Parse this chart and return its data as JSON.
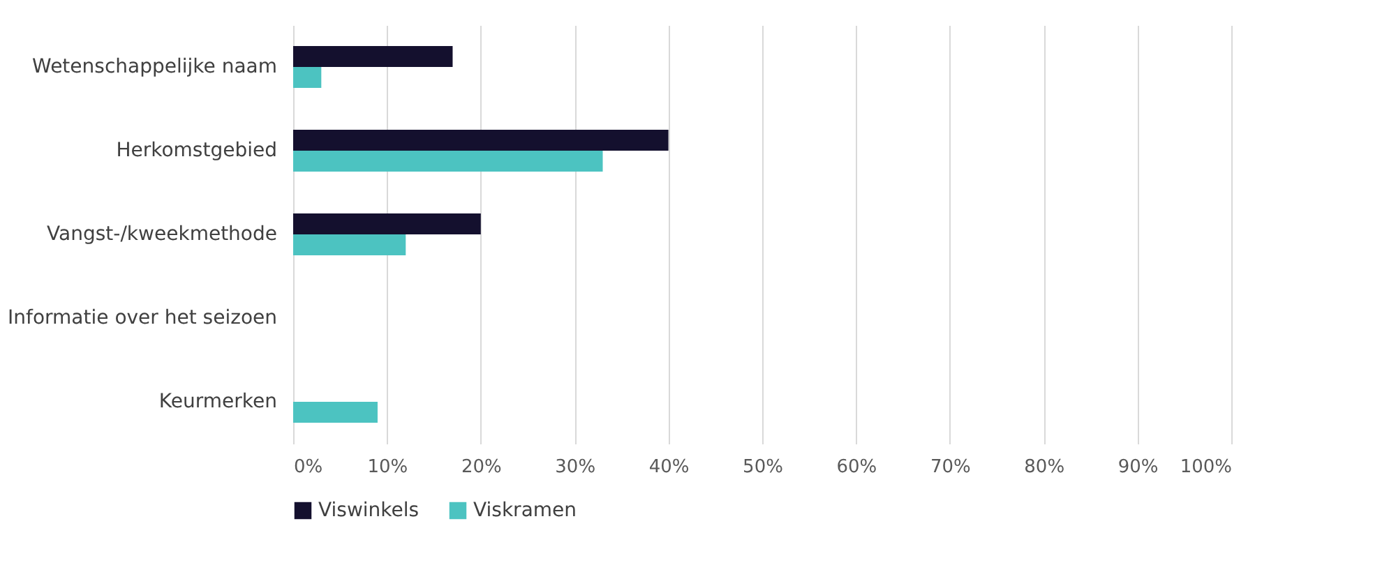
{
  "chart_data": {
    "type": "bar",
    "orientation": "horizontal",
    "categories": [
      "Wetenschappelijke naam",
      "Herkomstgebied",
      "Vangst-/kweekmethode",
      "Informatie over het seizoen",
      "Keurmerken"
    ],
    "series": [
      {
        "name": "Viswinkels",
        "color": "#14102e",
        "values": [
          17,
          40,
          20,
          0,
          0
        ]
      },
      {
        "name": "Viskramen",
        "color": "#4cc3c1",
        "values": [
          3,
          33,
          12,
          0,
          9
        ]
      }
    ],
    "xlim": [
      0,
      100
    ],
    "xticks": [
      {
        "value": 0,
        "label": "0%"
      },
      {
        "value": 10,
        "label": "10%"
      },
      {
        "value": 20,
        "label": "20%"
      },
      {
        "value": 30,
        "label": "30%"
      },
      {
        "value": 40,
        "label": "40%"
      },
      {
        "value": 50,
        "label": "50%"
      },
      {
        "value": 60,
        "label": "60%"
      },
      {
        "value": 70,
        "label": "70%"
      },
      {
        "value": 80,
        "label": "80%"
      },
      {
        "value": 90,
        "label": "90%"
      },
      {
        "value": 100,
        "label": "100%"
      }
    ],
    "grid": "x",
    "legend": "bottom"
  }
}
